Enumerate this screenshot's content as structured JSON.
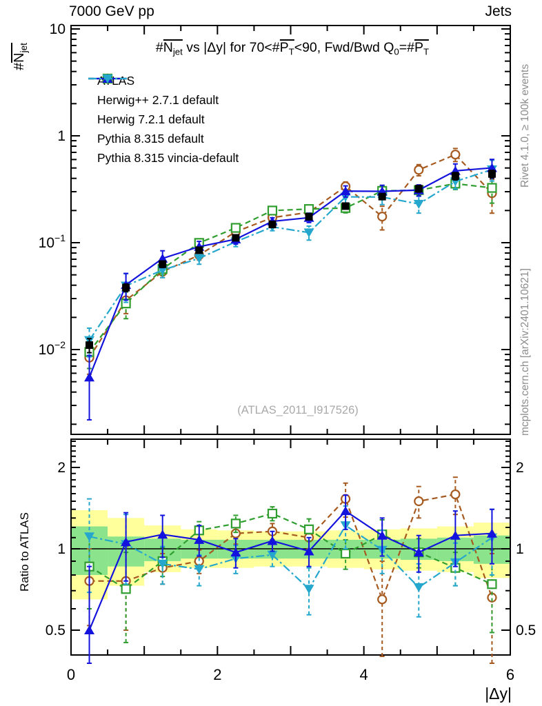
{
  "header": {
    "left": "7000 GeV pp",
    "right": "Jets"
  },
  "title_parts": [
    {
      "t": "#"
    },
    {
      "t": "N",
      "ov": true
    },
    {
      "t": "jet",
      "sub": true,
      "ov": true
    },
    {
      "t": " vs |Δy| for 70<#"
    },
    {
      "t": "P",
      "ov": true
    },
    {
      "t": "T",
      "sub": true,
      "ov": true
    },
    {
      "t": "<90, Fwd/Bwd Q"
    },
    {
      "t": "0",
      "sub": true
    },
    {
      "t": "=#"
    },
    {
      "t": "P",
      "ov": true
    },
    {
      "t": "T",
      "sub": true,
      "ov": true
    }
  ],
  "ylabel_parts": [
    {
      "t": "#"
    },
    {
      "t": "N",
      "ov": true
    },
    {
      "t": "jet",
      "sub": true,
      "ov": true
    }
  ],
  "ratio_label": "Ratio to ATLAS",
  "xlabel": "|Δy|",
  "watermark": "(ATLAS_2011_I917526)",
  "right_margin": {
    "top": "Rivet 4.1.0, ≥ 100k events",
    "bottom": "mcplots.cern.ch [arXiv:2401.10621]"
  },
  "colors": {
    "atlas": "#000000",
    "herwigpp": "#a65a1f",
    "herwig7": "#2f9e2f",
    "pythia": "#1313dd",
    "vincia": "#25a7cd",
    "band_yellow": "#ffff9b",
    "band_green": "#8be48b"
  },
  "chart_data": {
    "type": "line",
    "title": "#Njet vs |Δy| for 70<#PT<90, Fwd/Bwd Q0=#PT",
    "xlabel": "|Δy|",
    "ylabel_main": "#Njet",
    "ylabel_ratio": "Ratio to ATLAS",
    "x_axis": {
      "min": 0,
      "max": 6,
      "major_ticks": [
        0,
        2,
        4,
        6
      ],
      "minor_step": 0.5,
      "tick_labels": [
        "0",
        "2",
        "4",
        "6"
      ]
    },
    "y_main_axis": {
      "scale": "log",
      "min": 0.0016,
      "max": 10.8,
      "tick_values": [
        10,
        1,
        0.1,
        0.01
      ],
      "tick_labels": [
        {
          "base": "10",
          "exp": ""
        },
        {
          "base": "1",
          "exp": ""
        },
        {
          "base": "10",
          "exp": "−1"
        },
        {
          "base": "10",
          "exp": "−2"
        }
      ]
    },
    "y_ratio_axis": {
      "scale": "log",
      "min": 0.4,
      "max": 2.54,
      "tick_values": [
        2,
        1,
        0.5
      ],
      "tick_labels": [
        "2",
        "1",
        "0.5"
      ],
      "labels_both_sides": true
    },
    "x": [
      0.25,
      0.75,
      1.25,
      1.75,
      2.25,
      2.75,
      3.25,
      3.75,
      4.25,
      4.75,
      5.25,
      5.75
    ],
    "bin_edges": [
      0,
      0.5,
      1,
      1.5,
      2,
      2.5,
      3,
      3.5,
      4,
      4.5,
      5,
      5.5,
      6
    ],
    "series": [
      {
        "key": "atlas",
        "name": "ATLAS",
        "marker": "square-filled",
        "line": "none",
        "values": [
          0.011,
          0.038,
          0.063,
          0.085,
          0.111,
          0.148,
          0.175,
          0.22,
          0.27,
          0.32,
          0.42,
          0.44
        ],
        "err_frac": [
          0.15,
          0.08,
          0.07,
          0.06,
          0.06,
          0.05,
          0.05,
          0.06,
          0.06,
          0.07,
          0.08,
          0.08
        ]
      },
      {
        "key": "herwigpp",
        "name": "Herwig++ 2.7.1 default",
        "marker": "circle-open",
        "line": "dashed",
        "values": [
          0.0084,
          0.0289,
          0.0536,
          0.0765,
          0.1265,
          0.1717,
          0.1925,
          0.3366,
          0.1755,
          0.48,
          0.6678,
          0.2904
        ],
        "err_frac": [
          0.3,
          0.25,
          0.12,
          0.1,
          0.09,
          0.07,
          0.09,
          0.1,
          0.25,
          0.12,
          0.14,
          0.35
        ],
        "ratio": [
          0.76,
          0.76,
          0.85,
          0.9,
          1.14,
          1.16,
          1.1,
          1.53,
          0.65,
          1.5,
          1.59,
          0.66
        ],
        "ratio_err": [
          0.24,
          0.26,
          0.11,
          0.09,
          0.1,
          0.08,
          0.1,
          0.22,
          0.25,
          0.2,
          0.25,
          0.3
        ]
      },
      {
        "key": "herwig7",
        "name": "Herwig 7.2.1 default",
        "marker": "square-open",
        "line": "dashed",
        "values": [
          0.0095,
          0.027,
          0.0567,
          0.0995,
          0.1376,
          0.1998,
          0.2065,
          0.2112,
          0.3051,
          0.3104,
          0.357,
          0.3256
        ],
        "err_frac": [
          0.3,
          0.28,
          0.12,
          0.08,
          0.07,
          0.06,
          0.09,
          0.1,
          0.12,
          0.1,
          0.12,
          0.28
        ],
        "ratio": [
          0.86,
          0.71,
          0.9,
          1.17,
          1.24,
          1.35,
          1.18,
          0.96,
          1.13,
          0.97,
          0.85,
          0.74
        ],
        "ratio_err": [
          0.26,
          0.26,
          0.11,
          0.09,
          0.09,
          0.08,
          0.11,
          0.12,
          0.15,
          0.12,
          0.12,
          0.25
        ]
      },
      {
        "key": "vincia",
        "name": "Pythia 8.315 vincia-default",
        "marker": "triangle-down-filled",
        "line": "dashdot",
        "values": [
          0.0122,
          0.0395,
          0.0554,
          0.0714,
          0.1021,
          0.1406,
          0.1243,
          0.2684,
          0.2673,
          0.2304,
          0.3738,
          0.484
        ],
        "err_frac": [
          0.3,
          0.3,
          0.15,
          0.12,
          0.1,
          0.08,
          0.15,
          0.14,
          0.15,
          0.18,
          0.15,
          0.22
        ],
        "ratio": [
          1.11,
          1.04,
          0.88,
          0.84,
          0.92,
          0.95,
          0.71,
          1.22,
          0.99,
          0.72,
          0.89,
          1.1
        ],
        "ratio_err": [
          0.42,
          0.3,
          0.14,
          0.11,
          0.11,
          0.09,
          0.14,
          0.22,
          0.18,
          0.16,
          0.16,
          0.3
        ]
      },
      {
        "key": "pythia",
        "name": "Pythia 8.315 default",
        "marker": "triangle-up-filled",
        "line": "solid",
        "values": [
          0.0055,
          0.0403,
          0.0712,
          0.0918,
          0.1077,
          0.1584,
          0.1715,
          0.3036,
          0.3024,
          0.3104,
          0.4704,
          0.5016
        ],
        "err_frac": [
          0.6,
          0.28,
          0.18,
          0.12,
          0.1,
          0.08,
          0.1,
          0.12,
          0.14,
          0.12,
          0.16,
          0.2
        ],
        "ratio": [
          0.5,
          1.06,
          1.13,
          1.08,
          0.97,
          1.07,
          0.98,
          1.38,
          1.12,
          0.97,
          1.12,
          1.14
        ],
        "ratio_err": [
          0.36,
          0.3,
          0.2,
          0.14,
          0.12,
          0.09,
          0.12,
          0.2,
          0.18,
          0.15,
          0.26,
          0.26
        ]
      }
    ],
    "bands": {
      "yellow_lo": [
        0.65,
        0.73,
        0.82,
        0.85,
        0.85,
        0.86,
        0.86,
        0.85,
        0.84,
        0.83,
        0.82,
        0.78
      ],
      "yellow_hi": [
        1.39,
        1.3,
        1.22,
        1.18,
        1.17,
        1.16,
        1.16,
        1.17,
        1.18,
        1.19,
        1.21,
        1.25
      ],
      "green_lo": [
        0.8,
        0.86,
        0.9,
        0.92,
        0.92,
        0.92,
        0.92,
        0.92,
        0.92,
        0.91,
        0.9,
        0.88
      ],
      "green_hi": [
        1.21,
        1.11,
        1.09,
        1.08,
        1.08,
        1.08,
        1.08,
        1.08,
        1.08,
        1.09,
        1.1,
        1.12
      ]
    },
    "legend_order": [
      "atlas",
      "herwigpp",
      "herwig7",
      "pythia",
      "vincia"
    ],
    "legend_position": "top-left",
    "grid": false
  }
}
